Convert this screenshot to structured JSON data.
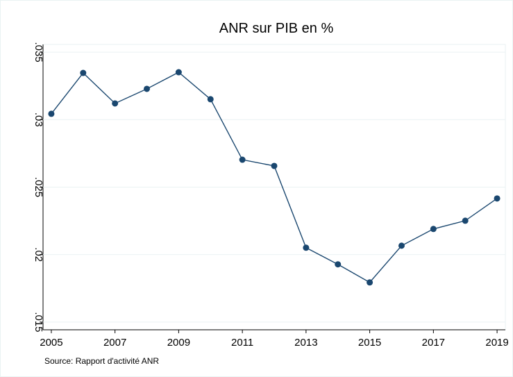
{
  "chart_data": {
    "type": "line",
    "title": "ANR sur PIB en %",
    "note": "Source: Rapport d'activité ANR",
    "x": [
      2005,
      2006,
      2007,
      2008,
      2009,
      2010,
      2011,
      2012,
      2013,
      2014,
      2015,
      2016,
      2017,
      2018,
      2019
    ],
    "series": [
      {
        "name": "ANR sur PIB",
        "color": "#1a476f",
        "values": [
          0.03043,
          0.03346,
          0.0312,
          0.03228,
          0.03351,
          0.03151,
          0.02703,
          0.02657,
          0.02051,
          0.01928,
          0.01794,
          0.02066,
          0.0219,
          0.02251,
          0.02416
        ]
      }
    ],
    "xlim": [
      2004.74,
      2019.26
    ],
    "xticks": [
      2005,
      2007,
      2009,
      2011,
      2013,
      2015,
      2017,
      2019
    ],
    "ylim": [
      0.01443,
      0.03557
    ],
    "yticks": [
      {
        "value": 0.015,
        "label": ".015"
      },
      {
        "value": 0.02,
        "label": ".02"
      },
      {
        "value": 0.025,
        "label": ".025"
      },
      {
        "value": 0.03,
        "label": ".03"
      },
      {
        "value": 0.035,
        "label": ".035"
      }
    ],
    "grid": true
  }
}
